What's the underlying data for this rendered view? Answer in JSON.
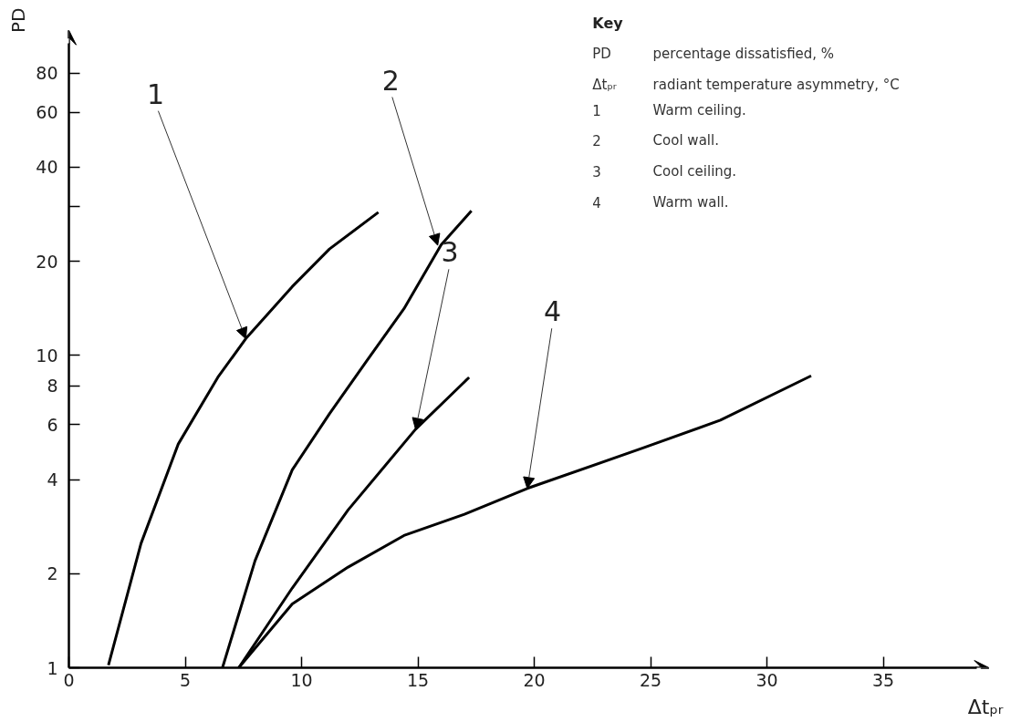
{
  "chart_data": {
    "type": "line",
    "xlabel": "Δtₚᵣ",
    "ylabel": "PD",
    "legend_title": "Key",
    "log": "y",
    "grid": false,
    "marker": "none",
    "line_style": "solid",
    "xlim": [
      0,
      39
    ],
    "ylim": [
      1,
      100
    ],
    "xticks": [
      0,
      5,
      10,
      15,
      20,
      25,
      30,
      35
    ],
    "yticks": [
      1,
      2,
      4,
      6,
      8,
      10,
      20,
      {
        "value": 30,
        "label": null
      },
      40,
      60,
      80
    ],
    "series": [
      {
        "color": "#000000",
        "x": [
          1.7,
          3.1,
          4.7,
          6.4,
          7.6,
          9.6,
          11.2,
          13.3
        ],
        "values": [
          1.02,
          2.5,
          5.2,
          8.5,
          11.3,
          16.6,
          21.9,
          28.7
        ]
      },
      {
        "color": "#000000",
        "x": [
          6.6,
          8.0,
          9.6,
          11.2,
          12.8,
          14.4,
          16.0,
          17.3
        ],
        "values": [
          1.0,
          2.2,
          4.3,
          6.5,
          9.6,
          14.1,
          22.6,
          29.0
        ]
      },
      {
        "color": "#000000",
        "x": [
          7.3,
          9.6,
          12.0,
          14.9,
          17.2
        ],
        "values": [
          1.0,
          1.8,
          3.2,
          5.8,
          8.5
        ]
      },
      {
        "color": "#000000",
        "x": [
          7.3,
          9.6,
          12.0,
          14.4,
          17.0,
          19.7,
          24.7,
          28.0,
          31.9
        ],
        "values": [
          1.0,
          1.6,
          2.1,
          2.65,
          3.1,
          3.75,
          5.06,
          6.2,
          8.6
        ]
      }
    ],
    "annotations": [
      {
        "text": "1",
        "x": 7.6,
        "y": 11.3
      },
      {
        "text": "2",
        "x": 15.85,
        "y": 22.5
      },
      {
        "text": "3",
        "x": 14.9,
        "y": 5.8
      },
      {
        "text": "4",
        "x": 19.7,
        "y": 3.75
      },
      "PD",
      "percentage dissatisfied, %",
      "Δtₚᵣ",
      "radiant temperature asymmetry, °C",
      "1",
      "Warm ceiling.",
      "2",
      "Cool wall.",
      "3",
      "Cool ceiling.",
      "4",
      "Warm wall."
    ]
  }
}
